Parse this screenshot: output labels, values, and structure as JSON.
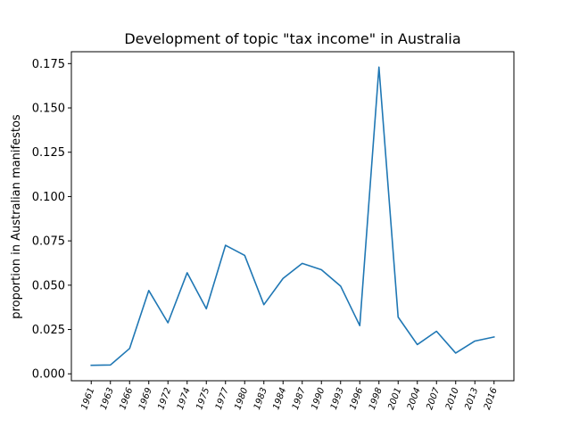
{
  "chart_data": {
    "type": "line",
    "title": "Development of topic \"tax income\" in Australia",
    "xlabel": "",
    "ylabel": "proportion in Australian manifestos",
    "x": [
      "1961",
      "1963",
      "1966",
      "1969",
      "1972",
      "1974",
      "1975",
      "1977",
      "1980",
      "1983",
      "1984",
      "1987",
      "1990",
      "1993",
      "1996",
      "1998",
      "2001",
      "2004",
      "2007",
      "2010",
      "2013",
      "2016"
    ],
    "series": [
      {
        "color": "#1f77b4",
        "values": [
          0.0048,
          0.005,
          0.0143,
          0.047,
          0.0288,
          0.057,
          0.0367,
          0.0725,
          0.0668,
          0.039,
          0.0538,
          0.0623,
          0.0587,
          0.0495,
          0.0272,
          0.173,
          0.032,
          0.0165,
          0.024,
          0.0117,
          0.0185,
          0.0208
        ]
      }
    ],
    "yticks": [
      "0.000",
      "0.025",
      "0.050",
      "0.075",
      "0.100",
      "0.125",
      "0.150",
      "0.175"
    ],
    "ytick_values": [
      0,
      0.025,
      0.05,
      0.075,
      0.1,
      0.125,
      0.15,
      0.175
    ],
    "ylim": [
      -0.0039,
      0.1817
    ],
    "grid": false,
    "legend": "none"
  }
}
